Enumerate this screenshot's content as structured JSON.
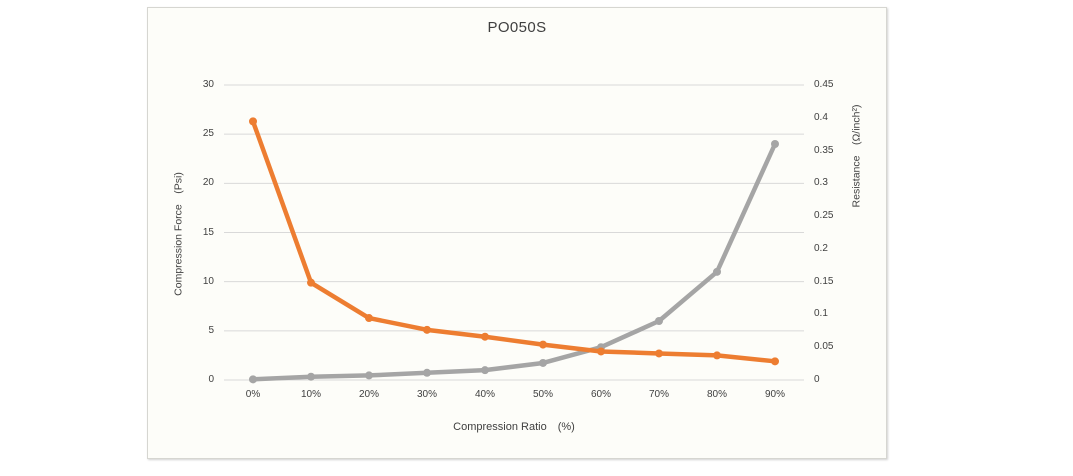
{
  "chart_data": {
    "type": "line",
    "title": "PO050S",
    "categories": [
      "0%",
      "10%",
      "20%",
      "30%",
      "40%",
      "50%",
      "60%",
      "70%",
      "80%",
      "90%"
    ],
    "xlabel": "Compression Ratio　(%)",
    "series": [
      {
        "name": "Compression Force",
        "axis": "left",
        "color": "#ED7D31",
        "marker": "circle",
        "values": [
          26.3,
          9.9,
          6.3,
          5.1,
          4.4,
          3.6,
          2.9,
          2.7,
          2.5,
          1.9
        ]
      },
      {
        "name": "Resistance",
        "axis": "right",
        "color": "#A5A5A5",
        "marker": "circle",
        "values": [
          0.001,
          0.005,
          0.007,
          0.011,
          0.015,
          0.026,
          0.05,
          0.09,
          0.165,
          0.36
        ]
      }
    ],
    "left_axis": {
      "label": "Compression Force　(Psi)",
      "min": 0,
      "max": 30,
      "tick_values": [
        0,
        5,
        10,
        15,
        20,
        25,
        30
      ],
      "tick_labels": [
        "0",
        "5",
        "10",
        "15",
        "20",
        "25",
        "30"
      ]
    },
    "right_axis": {
      "label": "Resistance　(Ω/inch²)",
      "min": 0,
      "max": 0.45,
      "tick_values": [
        0,
        0.05,
        0.1,
        0.15,
        0.2,
        0.25,
        0.3,
        0.35,
        0.4,
        0.45
      ],
      "tick_labels": [
        "0",
        "0.05",
        "0.1",
        "0.15",
        "0.2",
        "0.25",
        "0.3",
        "0.35",
        "0.4",
        "0.45"
      ]
    },
    "grid": {
      "horizontal": true,
      "color": "#D9D9D9"
    },
    "legend": "none",
    "plot_background": "#fdfdf9"
  }
}
